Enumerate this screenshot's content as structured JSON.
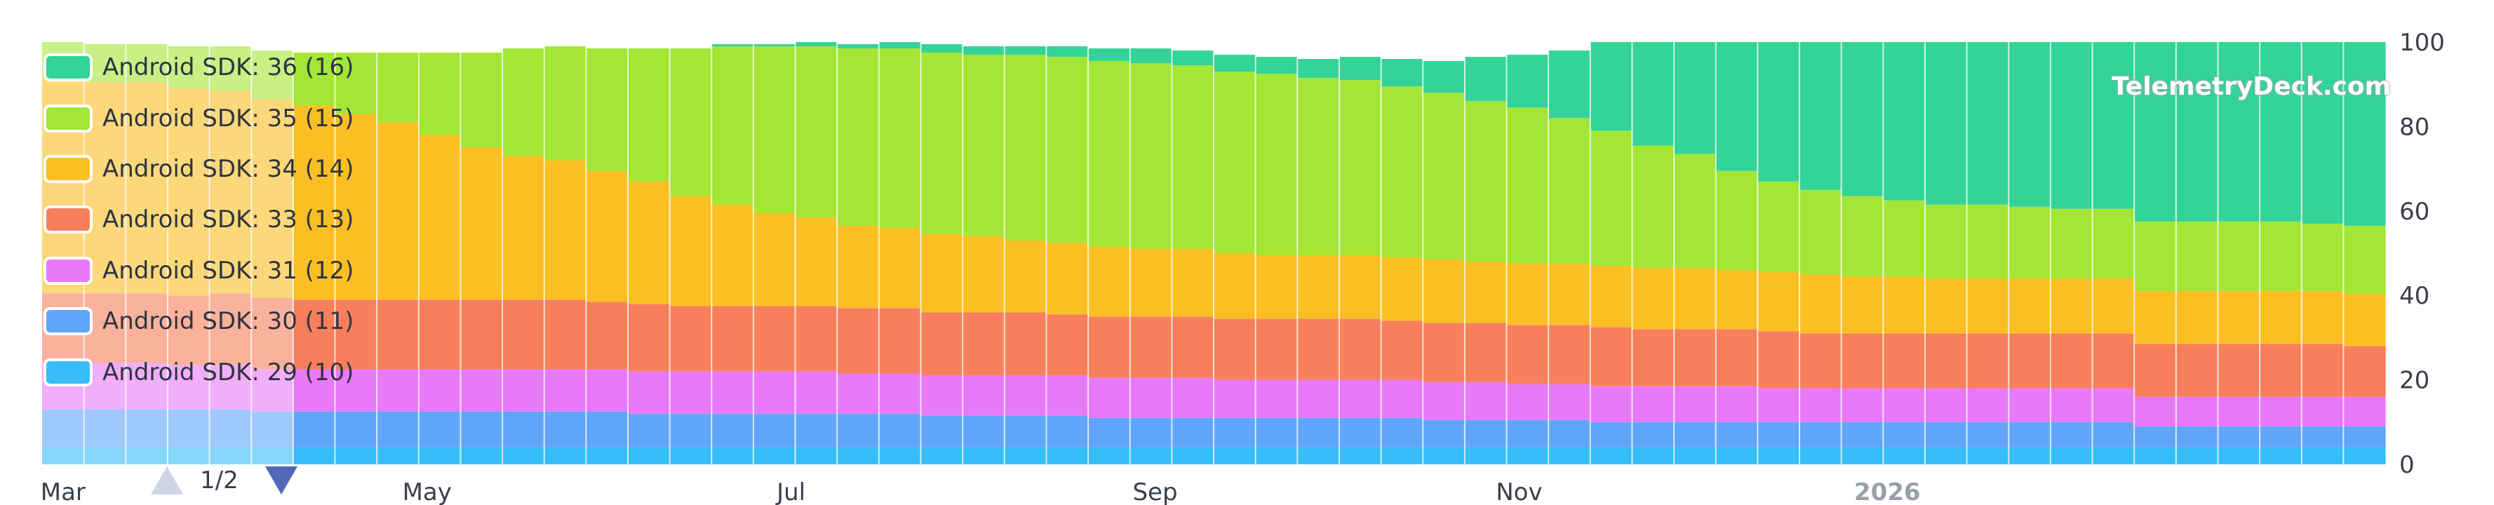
{
  "chart_data": {
    "type": "area",
    "stacked": true,
    "y_axis_position": "right",
    "ylim": [
      0,
      100
    ],
    "y_ticks": [
      "0",
      "20",
      "40",
      "60",
      "80",
      "100"
    ],
    "x_tick_labels": [
      "Mar",
      "May",
      "Jul",
      "Sep",
      "Nov",
      "2026"
    ],
    "x_ticks_week_index": [
      0.5,
      9.2,
      17.9,
      26.6,
      35.3,
      44.1
    ],
    "weeks": 56,
    "grid": "vertical weekly separators",
    "legend_placement": "top-left",
    "legend_page": "1/2",
    "watermark": "TelemetryDeck.com",
    "series": [
      {
        "name": "Android SDK: 29 (10)",
        "color": "#38bdf8",
        "values": [
          4,
          4,
          4,
          4,
          4,
          4,
          4,
          4,
          4,
          4,
          4,
          4,
          4,
          4,
          4,
          4,
          4,
          4,
          4,
          4,
          4,
          4,
          4,
          4,
          4,
          4,
          4,
          4,
          4,
          4,
          4,
          4,
          4,
          4,
          4,
          4,
          4,
          4,
          4,
          4,
          4,
          4,
          4,
          4,
          4,
          4,
          4,
          4,
          4,
          4,
          4,
          4,
          4,
          4,
          4,
          4
        ]
      },
      {
        "name": "Android SDK: 30 (11)",
        "color": "#60a5fa",
        "values": [
          9,
          9,
          9,
          9,
          9,
          8.5,
          8.5,
          8.5,
          8.5,
          8.5,
          8.5,
          8.5,
          8.5,
          8.5,
          8,
          8,
          8,
          8,
          8,
          8,
          8,
          7.5,
          7.5,
          7.5,
          7.5,
          7,
          7,
          7,
          7,
          7,
          7,
          7,
          7,
          6.5,
          6.5,
          6.5,
          6.5,
          6,
          6,
          6,
          6,
          6,
          6,
          6,
          6,
          6,
          6,
          6,
          6,
          6,
          5,
          5,
          5,
          5,
          5,
          5
        ]
      },
      {
        "name": "Android SDK: 31 (12)",
        "color": "#e879f9",
        "values": [
          11,
          11,
          11,
          10.5,
          10.5,
          10,
          10,
          10,
          10,
          10,
          10,
          10,
          10,
          10,
          10,
          10,
          10,
          10,
          10,
          9.5,
          9.5,
          9.5,
          9.5,
          9.5,
          9.5,
          9.5,
          9.5,
          9.5,
          9,
          9,
          9,
          9,
          9,
          9,
          9,
          8.5,
          8.5,
          8.5,
          8.5,
          8.5,
          8.5,
          8,
          8,
          8,
          8,
          8,
          8,
          8,
          8,
          8,
          7,
          7,
          7,
          7,
          7,
          7
        ]
      },
      {
        "name": "Android SDK: 33 (13)",
        "color": "#f87f5c",
        "values": [
          16.5,
          16.5,
          16.5,
          16.5,
          17,
          17,
          16.5,
          16.5,
          16.5,
          16.5,
          16.5,
          16.5,
          16.5,
          16,
          16,
          15.5,
          15.5,
          15.5,
          15.5,
          15.5,
          15.5,
          15,
          15,
          15,
          14.5,
          14.5,
          14.5,
          14.5,
          14.5,
          14.5,
          14.5,
          14.5,
          14,
          14,
          14,
          14,
          14,
          14,
          13.5,
          13.5,
          13.5,
          13.5,
          13,
          13,
          13,
          13,
          13,
          13,
          13,
          13,
          12.5,
          12.5,
          12.5,
          12.5,
          12.5,
          12
        ]
      },
      {
        "name": "Android SDK: 34 (14)",
        "color": "#fbbf24",
        "values": [
          52,
          50,
          50,
          49,
          48,
          47,
          46,
          44,
          42,
          39,
          36,
          34,
          33,
          31,
          29,
          26,
          24,
          22,
          21,
          19.5,
          19,
          18.5,
          18,
          17,
          17,
          16.5,
          16,
          16,
          15.5,
          15,
          15,
          15,
          15,
          15,
          14.5,
          14.5,
          14.5,
          14.5,
          14.5,
          14.5,
          14,
          14,
          14,
          13.5,
          13.5,
          13,
          13,
          13,
          13,
          13,
          12.5,
          12.5,
          12.5,
          12.5,
          12.5,
          12.5
        ]
      },
      {
        "name": "Android SDK: 35 (15)",
        "color": "#a3e635",
        "values": [
          7.5,
          9,
          9,
          10,
          10.5,
          11.5,
          12.5,
          14.5,
          16.5,
          19.5,
          22.5,
          25.5,
          27,
          29,
          31.5,
          35,
          37.5,
          39.5,
          40.5,
          42,
          42.5,
          43,
          43,
          44,
          44,
          44,
          44,
          43.5,
          43,
          43,
          42,
          41.5,
          40.5,
          39.5,
          38,
          37,
          34.5,
          32,
          29,
          27,
          23.5,
          21.5,
          20,
          19,
          18,
          17.5,
          17.5,
          17,
          16.5,
          16.5,
          16.5,
          16.5,
          16.5,
          16.5,
          16,
          16
        ]
      },
      {
        "name": "Android SDK: 36 (16)",
        "color": "#34d399",
        "values": [
          0,
          0,
          0,
          0,
          0,
          0,
          0,
          0,
          0,
          0,
          0,
          0,
          0,
          0,
          0,
          0,
          0.5,
          0.5,
          1,
          1,
          1.5,
          2,
          2,
          2,
          2.5,
          3,
          3.5,
          3.5,
          4,
          4,
          4.5,
          5.5,
          6.5,
          7.5,
          10.5,
          12.5,
          16,
          21,
          26,
          28.5,
          31,
          34,
          36.5,
          38.5,
          40,
          41,
          42,
          43,
          43.5,
          44,
          45,
          45,
          45,
          45,
          45.5,
          45.5
        ]
      }
    ]
  }
}
